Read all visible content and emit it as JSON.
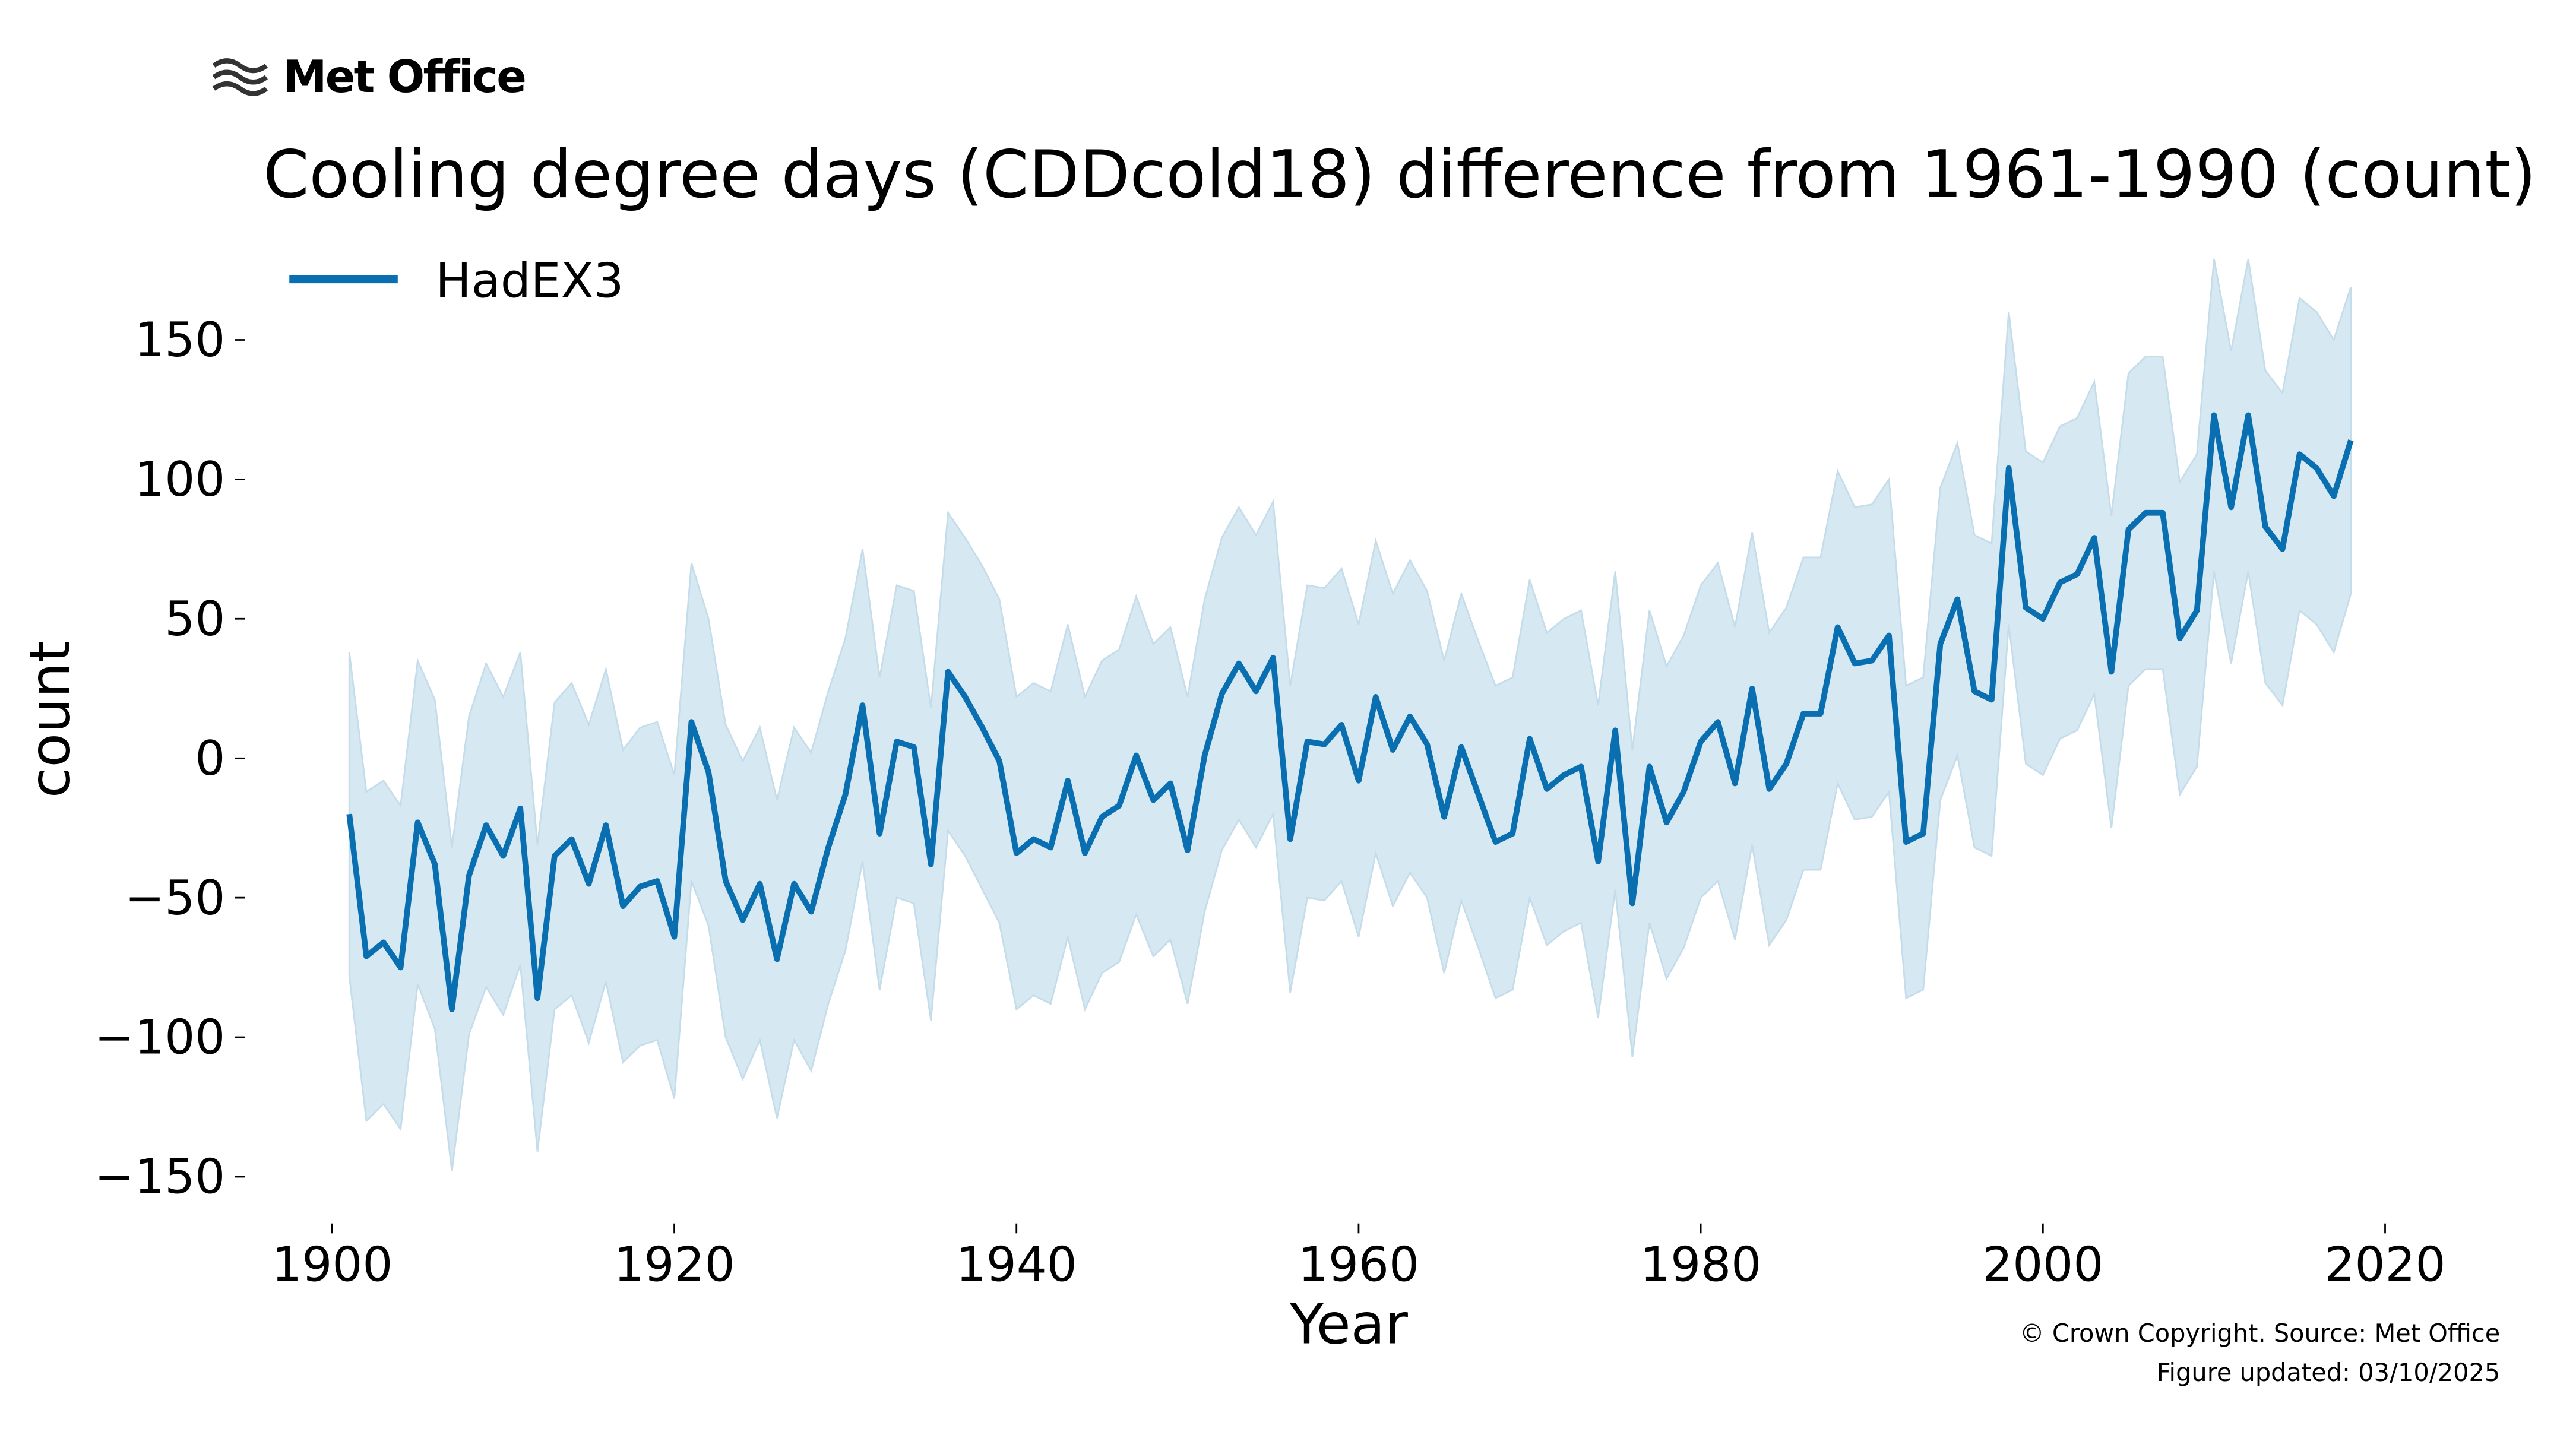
{
  "chart_data": {
    "type": "line",
    "logo": "Met Office",
    "title": "Cooling degree days (CDDcold18) difference from 1961-1990 (count)",
    "x_label": "Year",
    "y_label": "count",
    "footer": [
      "© Crown Copyright. Source: Met Office",
      "Figure updated: 03/10/2025"
    ],
    "x": [
      1901,
      1902,
      1903,
      1904,
      1905,
      1906,
      1907,
      1908,
      1909,
      1910,
      1911,
      1912,
      1913,
      1914,
      1915,
      1916,
      1917,
      1918,
      1919,
      1920,
      1921,
      1922,
      1923,
      1924,
      1925,
      1926,
      1927,
      1928,
      1929,
      1930,
      1931,
      1932,
      1933,
      1934,
      1935,
      1936,
      1937,
      1938,
      1939,
      1940,
      1941,
      1942,
      1943,
      1944,
      1945,
      1946,
      1947,
      1948,
      1949,
      1950,
      1951,
      1952,
      1953,
      1954,
      1955,
      1956,
      1957,
      1958,
      1959,
      1960,
      1961,
      1962,
      1963,
      1964,
      1965,
      1966,
      1967,
      1968,
      1969,
      1970,
      1971,
      1972,
      1973,
      1974,
      1975,
      1976,
      1977,
      1978,
      1979,
      1980,
      1981,
      1982,
      1983,
      1984,
      1985,
      1986,
      1987,
      1988,
      1989,
      1990,
      1991,
      1992,
      1993,
      1994,
      1995,
      1996,
      1997,
      1998,
      1999,
      2000,
      2001,
      2002,
      2003,
      2004,
      2005,
      2006,
      2007,
      2008,
      2009,
      2010,
      2011,
      2012,
      2013,
      2014,
      2015,
      2016,
      2017,
      2018
    ],
    "series": [
      {
        "name": "HadEX3",
        "color": "#0a6fb0",
        "values": [
          -20,
          -71,
          -66,
          -75,
          -23,
          -38,
          -90,
          -42,
          -24,
          -35,
          -18,
          -86,
          -35,
          -29,
          -45,
          -24,
          -53,
          -46,
          -44,
          -64,
          13,
          -5,
          -44,
          -58,
          -45,
          -72,
          -45,
          -55,
          -32,
          -13,
          19,
          -27,
          6,
          4,
          -38,
          31,
          22,
          11,
          -1,
          -34,
          -29,
          -32,
          -8,
          -34,
          -21,
          -17,
          1,
          -15,
          -9,
          -33,
          1,
          23,
          34,
          24,
          36,
          -29,
          6,
          5,
          12,
          -8,
          22,
          3,
          15,
          5,
          -21,
          4,
          -13,
          -30,
          -27,
          7,
          -11,
          -6,
          -3,
          -37,
          10,
          -52,
          -3,
          -23,
          -12,
          6,
          13,
          -9,
          25,
          -11,
          -2,
          16,
          16,
          47,
          34,
          35,
          44,
          -30,
          -27,
          41,
          57,
          24,
          21,
          104,
          54,
          50,
          63,
          66,
          79,
          31,
          82,
          88,
          88,
          43,
          53,
          123,
          90,
          123,
          83,
          75,
          109,
          104,
          94,
          114
        ]
      }
    ],
    "band": {
      "color": "#d6e8f2",
      "upper": [
        38,
        -12,
        -8,
        -17,
        35,
        21,
        -32,
        15,
        34,
        22,
        38,
        -31,
        20,
        27,
        12,
        32,
        3,
        11,
        13,
        -6,
        70,
        50,
        12,
        -1,
        11,
        -15,
        11,
        2,
        24,
        43,
        75,
        29,
        62,
        60,
        18,
        88,
        79,
        69,
        57,
        22,
        27,
        24,
        48,
        22,
        35,
        39,
        58,
        41,
        47,
        22,
        57,
        79,
        90,
        80,
        92,
        26,
        62,
        61,
        68,
        48,
        78,
        59,
        71,
        60,
        35,
        59,
        42,
        26,
        29,
        64,
        45,
        50,
        53,
        19,
        67,
        3,
        53,
        33,
        44,
        62,
        70,
        47,
        81,
        45,
        54,
        72,
        72,
        103,
        90,
        91,
        100,
        26,
        29,
        97,
        113,
        80,
        77,
        160,
        110,
        106,
        119,
        122,
        135,
        87,
        138,
        144,
        144,
        99,
        109,
        179,
        146,
        179,
        139,
        131,
        165,
        160,
        150,
        169
      ],
      "lower": [
        -78,
        -130,
        -124,
        -133,
        -81,
        -97,
        -148,
        -99,
        -82,
        -92,
        -74,
        -141,
        -90,
        -85,
        -102,
        -80,
        -109,
        -103,
        -101,
        -122,
        -44,
        -60,
        -100,
        -115,
        -101,
        -129,
        -101,
        -112,
        -88,
        -69,
        -37,
        -83,
        -50,
        -52,
        -94,
        -26,
        -35,
        -47,
        -59,
        -90,
        -85,
        -88,
        -64,
        -90,
        -77,
        -73,
        -56,
        -71,
        -65,
        -88,
        -55,
        -33,
        -22,
        -32,
        -20,
        -84,
        -50,
        -51,
        -44,
        -64,
        -34,
        -53,
        -41,
        -50,
        -77,
        -51,
        -68,
        -86,
        -83,
        -50,
        -67,
        -62,
        -59,
        -93,
        -47,
        -107,
        -59,
        -79,
        -68,
        -50,
        -44,
        -65,
        -31,
        -67,
        -58,
        -40,
        -40,
        -9,
        -22,
        -21,
        -12,
        -86,
        -83,
        -15,
        1,
        -32,
        -35,
        48,
        -2,
        -6,
        7,
        10,
        23,
        -25,
        26,
        32,
        32,
        -13,
        -3,
        67,
        34,
        67,
        27,
        19,
        53,
        48,
        38,
        59
      ]
    },
    "xlim": [
      1895,
      2025
    ],
    "ylim": [
      -165,
      180
    ],
    "xticks": [
      1900,
      1920,
      1940,
      1960,
      1980,
      2000,
      2020
    ],
    "yticks": [
      {
        "value": -150,
        "label": "−150"
      },
      {
        "value": -100,
        "label": "−100"
      },
      {
        "value": -50,
        "label": "−50"
      },
      0,
      50,
      100,
      150
    ],
    "legend": "upper left",
    "grid": false
  }
}
